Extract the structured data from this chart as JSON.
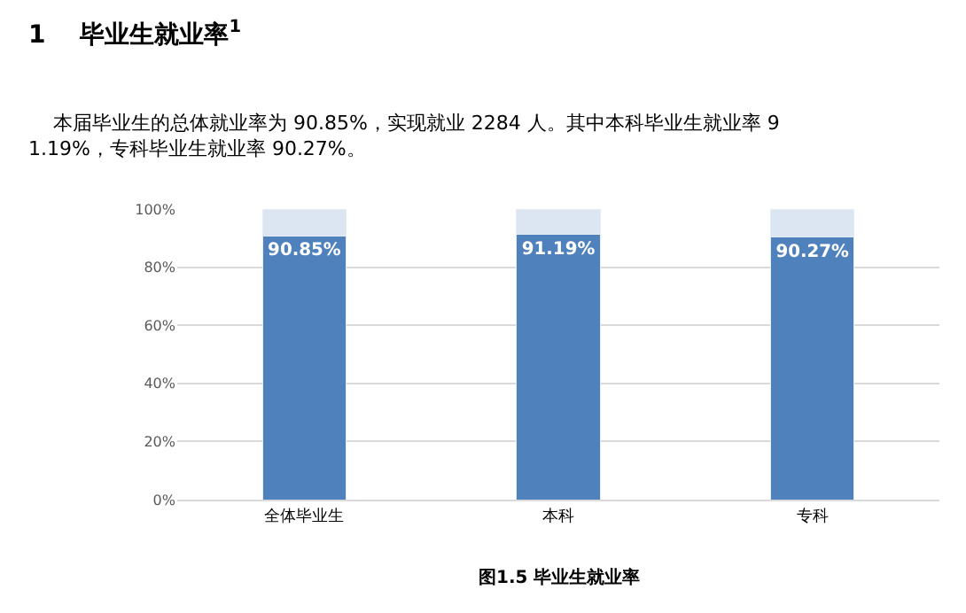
{
  "chart_data": {
    "type": "bar",
    "title": "1    毕业生就业率$^{1}$",
    "subtitle": "本届毕业生的总体就业率为 90.85%，实现就业 2284 人。其中本科毕业生就业率 91.19%，专科毕业生就业率 90.27%。",
    "categories": [
      "全体毕业生",
      "本科",
      "专科"
    ],
    "stacked": true,
    "series": [
      {
        "color": "#4f81bd",
        "values": [
          90.85,
          91.19,
          90.27
        ],
        "value_labels": [
          "90.85%",
          "91.19%",
          "90.27%"
        ]
      },
      {
        "color": "#dce6f2",
        "values": [
          9.15,
          8.81,
          9.73
        ]
      }
    ],
    "ylim": [
      0,
      100
    ],
    "yticks": [
      {
        "value": 0,
        "label": "0%"
      },
      {
        "value": 20,
        "label": "20%"
      },
      {
        "value": 40,
        "label": "40%"
      },
      {
        "value": 60,
        "label": "60%"
      },
      {
        "value": 80,
        "label": "80%"
      },
      {
        "value": 100,
        "label": "100%"
      }
    ],
    "grid": "y",
    "annotations": [
      "图1.5 毕业生就业率"
    ]
  }
}
